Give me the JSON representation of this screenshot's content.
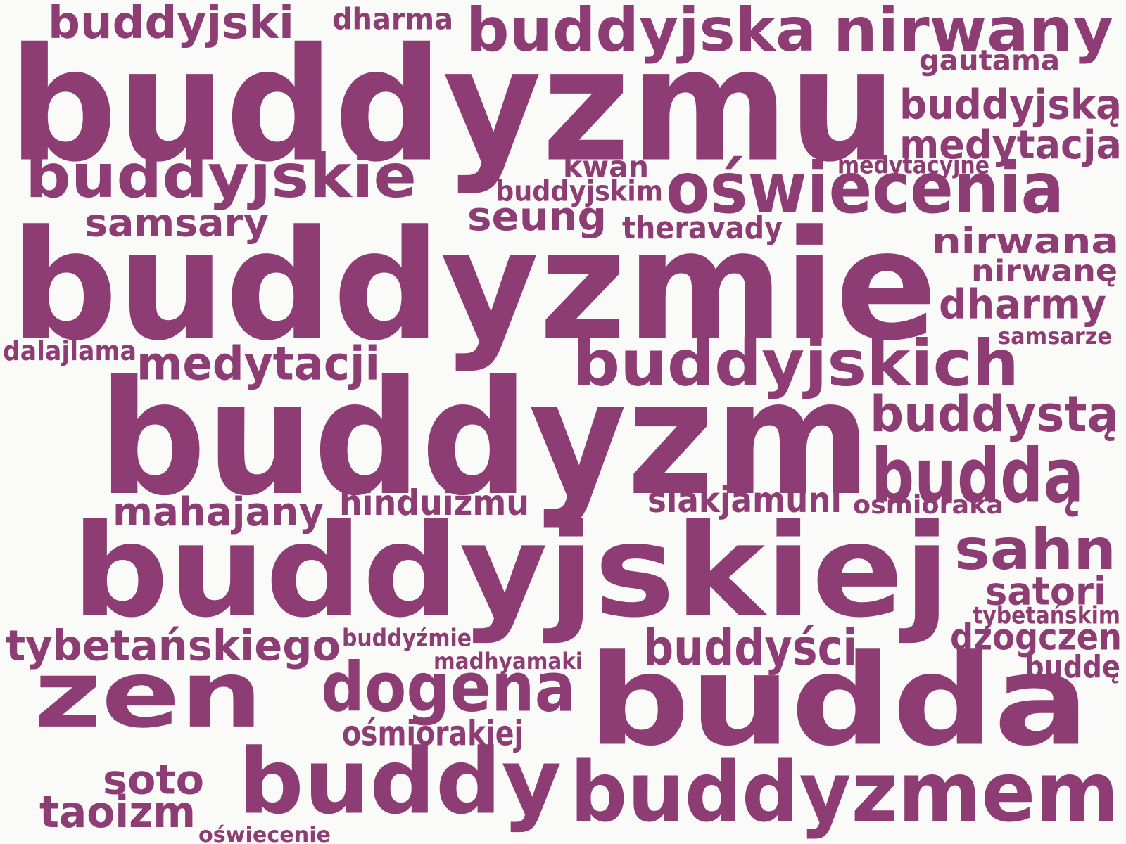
{
  "colors": {
    "background": "#fafaf8",
    "word": "#8e3c74"
  },
  "words": [
    {
      "text": "buddyzmu"
    },
    {
      "text": "buddyzmie"
    },
    {
      "text": "buddyzm"
    },
    {
      "text": "buddyjskiej"
    },
    {
      "text": "budda"
    },
    {
      "text": "zen"
    },
    {
      "text": "buddy"
    },
    {
      "text": "buddyzmem"
    },
    {
      "text": "buddyjska"
    },
    {
      "text": "nirwany"
    },
    {
      "text": "buddyjski"
    },
    {
      "text": "dharma"
    },
    {
      "text": "gautama"
    },
    {
      "text": "buddyjską"
    },
    {
      "text": "medytacja"
    },
    {
      "text": "medytacyjne"
    },
    {
      "text": "buddyjskie"
    },
    {
      "text": "kwan"
    },
    {
      "text": "buddyjskim"
    },
    {
      "text": "oświecenia"
    },
    {
      "text": "seung"
    },
    {
      "text": "samsary"
    },
    {
      "text": "theravady"
    },
    {
      "text": "nirwana"
    },
    {
      "text": "nirwanę"
    },
    {
      "text": "dharmy"
    },
    {
      "text": "samsarze"
    },
    {
      "text": "dalajlama"
    },
    {
      "text": "medytacji"
    },
    {
      "text": "buddyjskich"
    },
    {
      "text": "buddystą"
    },
    {
      "text": "buddą"
    },
    {
      "text": "mahajany"
    },
    {
      "text": "hinduizmu"
    },
    {
      "text": "siakjamuni"
    },
    {
      "text": "ośmioraka"
    },
    {
      "text": "sahn"
    },
    {
      "text": "satori"
    },
    {
      "text": "tybetańskim"
    },
    {
      "text": "tybetańskiego"
    },
    {
      "text": "buddyźmie"
    },
    {
      "text": "buddyści"
    },
    {
      "text": "dzogczen"
    },
    {
      "text": "madhyamaki"
    },
    {
      "text": "buddę"
    },
    {
      "text": "dogena"
    },
    {
      "text": "ośmiorakiej"
    },
    {
      "text": "soto"
    },
    {
      "text": "taoizm"
    },
    {
      "text": "oświecenie"
    }
  ]
}
